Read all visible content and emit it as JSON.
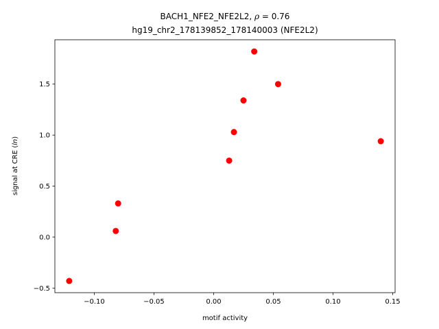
{
  "chart_data": {
    "type": "scatter",
    "title": "BACH1_NFE2_NFE2L2, ρ = 0.76",
    "subtitle": "hg19_chr2_178139852_178140003 (NFE2L2)",
    "xlabel": "motif activity",
    "ylabel": "signal at CRE (ln)",
    "xlim": [
      -0.133,
      0.152
    ],
    "ylim": [
      -0.545,
      1.935
    ],
    "xticks": [
      -0.1,
      -0.05,
      0.0,
      0.05,
      0.1,
      0.15
    ],
    "xtick_labels": [
      "−0.10",
      "−0.05",
      "0.00",
      "0.05",
      "0.10",
      "0.15"
    ],
    "yticks": [
      -0.5,
      0.0,
      0.5,
      1.0,
      1.5
    ],
    "ytick_labels": [
      "−0.5",
      "0.0",
      "0.5",
      "1.0",
      "1.5"
    ],
    "grid": false,
    "marker_color": "#ff0000",
    "points": [
      {
        "x": -0.121,
        "y": -0.43
      },
      {
        "x": -0.082,
        "y": 0.06
      },
      {
        "x": -0.08,
        "y": 0.33
      },
      {
        "x": 0.013,
        "y": 0.75
      },
      {
        "x": 0.017,
        "y": 1.03
      },
      {
        "x": 0.025,
        "y": 1.34
      },
      {
        "x": 0.034,
        "y": 1.82
      },
      {
        "x": 0.054,
        "y": 1.5
      },
      {
        "x": 0.14,
        "y": 0.94
      }
    ]
  }
}
